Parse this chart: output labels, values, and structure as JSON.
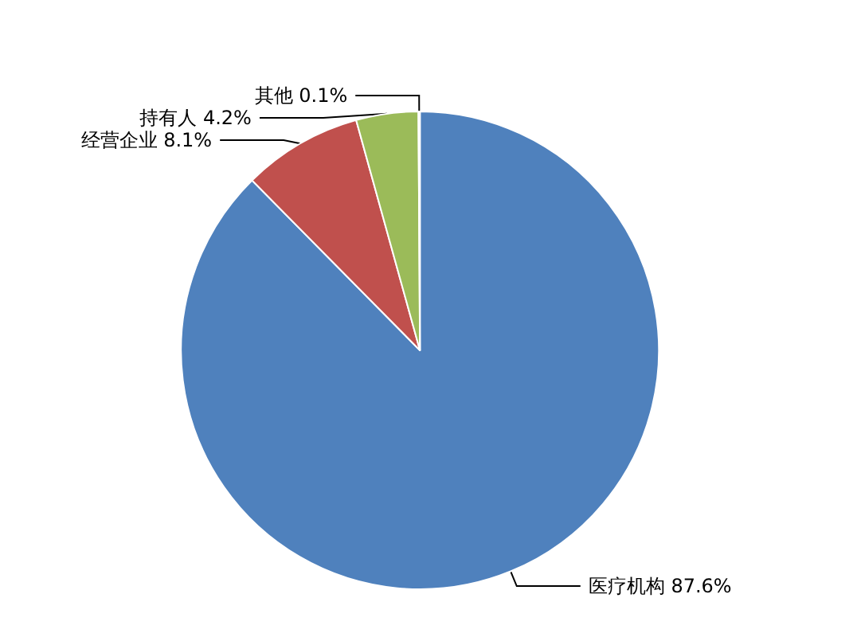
{
  "chart_data": {
    "type": "pie",
    "categories": [
      "医疗机构",
      "经营企业",
      "持有人",
      "其他"
    ],
    "values": [
      87.6,
      8.1,
      4.2,
      0.1
    ],
    "colors": [
      "#4f81bd",
      "#c0504d",
      "#9bbb59",
      "#8064a2"
    ],
    "value_labels": [
      "87.6%",
      "8.1%",
      "4.2%",
      "0.1%"
    ],
    "legend": false
  }
}
